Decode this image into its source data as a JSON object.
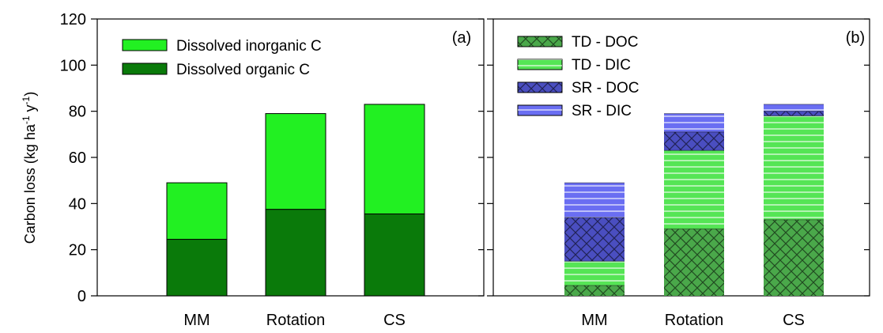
{
  "chart_data": [
    {
      "panel": "(a)",
      "type": "bar",
      "stacked": true,
      "categories": [
        "MM",
        "Rotation",
        "CS"
      ],
      "series": [
        {
          "name": "Dissolved organic C",
          "values": [
            24.5,
            37.5,
            35.5
          ],
          "color": "#0a7a0a",
          "pattern": "solid"
        },
        {
          "name": "Dissolved inorganic C",
          "values": [
            24.5,
            41.5,
            47.5
          ],
          "color": "#22f022",
          "pattern": "solid"
        }
      ],
      "ylabel": "Carbon loss (kg ha-1 y-1)",
      "ylim": [
        0,
        120
      ],
      "yticks": [
        0,
        20,
        40,
        60,
        80,
        100,
        120
      ],
      "legend_position": "top-left",
      "legend_order": [
        "Dissolved inorganic C",
        "Dissolved organic C"
      ]
    },
    {
      "panel": "(b)",
      "type": "bar",
      "stacked": true,
      "categories": [
        "MM",
        "Rotation",
        "CS"
      ],
      "series": [
        {
          "name": "TD - DOC",
          "values": [
            4.5,
            29.0,
            33.0
          ],
          "color": "#4aa84a",
          "pattern": "crosshatch"
        },
        {
          "name": "TD - DIC",
          "values": [
            10.5,
            34.0,
            45.0
          ],
          "color": "#55e555",
          "pattern": "horizontal"
        },
        {
          "name": "SR - DOC",
          "values": [
            19.0,
            8.0,
            2.0
          ],
          "color": "#4a4ec0",
          "pattern": "crosshatch"
        },
        {
          "name": "SR - DIC",
          "values": [
            15.0,
            8.0,
            3.0
          ],
          "color": "#6a6ef2",
          "pattern": "horizontal"
        }
      ],
      "ylim": [
        0,
        120
      ],
      "legend_position": "top-left",
      "legend_order": [
        "TD - DOC",
        "TD - DIC",
        "SR - DOC",
        "SR - DIC"
      ]
    }
  ],
  "ylabel_parts": {
    "main": "Carbon loss (kg ha",
    "sup1": "-1",
    "mid": " y",
    "sup2": "-1",
    "end": ")"
  }
}
